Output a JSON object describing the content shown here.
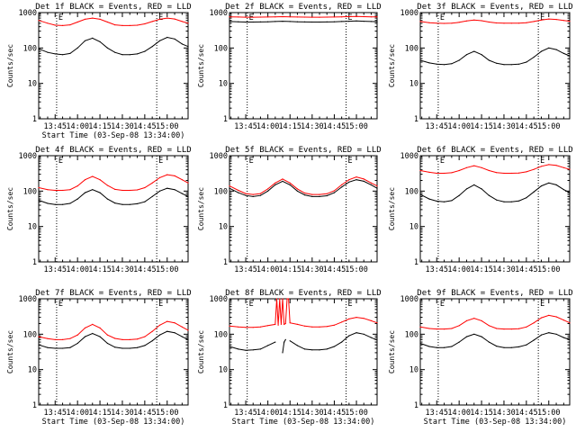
{
  "chart_data": [
    {
      "type": "line",
      "title": "Det 1f BLACK = Events, RED = LLD",
      "xlabel": "Start Time (03-Sep-08 13:34:00)",
      "ylabel": "Counts/sec",
      "yscale": "log",
      "ylim": [
        1,
        1000
      ],
      "xlim": [
        "13:34",
        "15:14"
      ],
      "x_ticks": [
        "13:45",
        "14:00",
        "14:15",
        "14:30",
        "14:45",
        "15:00"
      ],
      "y_ticks": [
        "1",
        "10",
        "100",
        "1000"
      ],
      "markers": [
        "13:46",
        "14:53"
      ],
      "marker_label": "E",
      "x": [
        "13:34",
        "13:40",
        "13:45",
        "13:50",
        "13:55",
        "14:00",
        "14:05",
        "14:10",
        "14:15",
        "14:20",
        "14:25",
        "14:30",
        "14:35",
        "14:40",
        "14:45",
        "14:50",
        "14:55",
        "15:00",
        "15:05",
        "15:10",
        "15:14"
      ],
      "series": [
        {
          "name": "Events",
          "color": "#000000",
          "values": [
            95,
            75,
            68,
            65,
            70,
            100,
            160,
            190,
            150,
            100,
            75,
            65,
            65,
            68,
            80,
            110,
            160,
            200,
            180,
            130,
            110
          ]
        },
        {
          "name": "LLD",
          "color": "#ff0000",
          "values": [
            600,
            500,
            440,
            430,
            450,
            540,
            650,
            700,
            650,
            540,
            450,
            430,
            430,
            440,
            480,
            560,
            650,
            700,
            660,
            560,
            500
          ]
        }
      ]
    },
    {
      "type": "line",
      "title": "Det 2f BLACK = Events, RED = LLD",
      "xlabel": "",
      "ylabel": "Counts/sec",
      "yscale": "log",
      "ylim": [
        1,
        1000
      ],
      "xlim": [
        "13:34",
        "15:14"
      ],
      "x_ticks": [
        "13:45",
        "14:00",
        "14:15",
        "14:30",
        "14:45",
        "15:00"
      ],
      "y_ticks": [
        "1",
        "10",
        "100",
        "1000"
      ],
      "markers": [
        "13:46",
        "14:53"
      ],
      "marker_label": "E",
      "x": [
        "13:34",
        "13:40",
        "13:45",
        "13:50",
        "13:55",
        "14:00",
        "14:05",
        "14:10",
        "14:15",
        "14:20",
        "14:25",
        "14:30",
        "14:35",
        "14:40",
        "14:45",
        "14:50",
        "14:55",
        "15:00",
        "15:05",
        "15:10",
        "15:14"
      ],
      "series": [
        {
          "name": "Events",
          "color": "#000000",
          "values": [
            560,
            550,
            540,
            540,
            545,
            550,
            560,
            570,
            560,
            550,
            545,
            540,
            540,
            545,
            550,
            560,
            570,
            580,
            570,
            560,
            555
          ]
        },
        {
          "name": "LLD",
          "color": "#ff0000",
          "values": [
            760,
            750,
            740,
            740,
            745,
            750,
            760,
            770,
            760,
            750,
            745,
            740,
            740,
            745,
            750,
            760,
            770,
            780,
            770,
            760,
            755
          ]
        }
      ]
    },
    {
      "type": "line",
      "title": "Det 3f BLACK = Events, RED = LLD",
      "xlabel": "",
      "ylabel": "Counts/sec",
      "yscale": "log",
      "ylim": [
        1,
        1000
      ],
      "xlim": [
        "13:34",
        "15:14"
      ],
      "x_ticks": [
        "13:45",
        "14:00",
        "14:15",
        "14:30",
        "14:45",
        "15:00"
      ],
      "y_ticks": [
        "1",
        "10",
        "100",
        "1000"
      ],
      "markers": [
        "13:46",
        "14:53"
      ],
      "marker_label": "E",
      "x": [
        "13:34",
        "13:40",
        "13:45",
        "13:50",
        "13:55",
        "14:00",
        "14:05",
        "14:10",
        "14:15",
        "14:20",
        "14:25",
        "14:30",
        "14:35",
        "14:40",
        "14:45",
        "14:50",
        "14:55",
        "15:00",
        "15:05",
        "15:10",
        "15:14"
      ],
      "series": [
        {
          "name": "Events",
          "color": "#000000",
          "values": [
            45,
            38,
            35,
            34,
            36,
            45,
            65,
            80,
            65,
            45,
            37,
            34,
            34,
            35,
            40,
            55,
            80,
            100,
            90,
            70,
            60
          ]
        },
        {
          "name": "LLD",
          "color": "#ff0000",
          "values": [
            560,
            520,
            500,
            495,
            500,
            530,
            580,
            620,
            590,
            540,
            510,
            500,
            500,
            505,
            520,
            560,
            620,
            660,
            640,
            600,
            570
          ]
        }
      ]
    },
    {
      "type": "line",
      "title": "Det 4f BLACK = Events, RED = LLD",
      "xlabel": "",
      "ylabel": "Counts/sec",
      "yscale": "log",
      "ylim": [
        1,
        1000
      ],
      "xlim": [
        "13:34",
        "15:14"
      ],
      "x_ticks": [
        "13:45",
        "14:00",
        "14:15",
        "14:30",
        "14:45",
        "15:00"
      ],
      "y_ticks": [
        "1",
        "10",
        "100",
        "1000"
      ],
      "markers": [
        "13:46",
        "14:53"
      ],
      "marker_label": "E",
      "x": [
        "13:34",
        "13:40",
        "13:45",
        "13:50",
        "13:55",
        "14:00",
        "14:05",
        "14:10",
        "14:15",
        "14:20",
        "14:25",
        "14:30",
        "14:35",
        "14:40",
        "14:45",
        "14:50",
        "14:55",
        "15:00",
        "15:05",
        "15:10",
        "15:14"
      ],
      "series": [
        {
          "name": "Events",
          "color": "#000000",
          "values": [
            55,
            45,
            42,
            42,
            45,
            60,
            90,
            110,
            90,
            60,
            46,
            42,
            42,
            44,
            50,
            70,
            100,
            120,
            110,
            85,
            70
          ]
        },
        {
          "name": "LLD",
          "color": "#ff0000",
          "values": [
            125,
            110,
            105,
            105,
            110,
            140,
            210,
            260,
            210,
            145,
            112,
            105,
            105,
            108,
            125,
            170,
            240,
            290,
            270,
            210,
            170
          ]
        }
      ]
    },
    {
      "type": "line",
      "title": "Det 5f BLACK = Events, RED = LLD",
      "xlabel": "",
      "ylabel": "Counts/sec",
      "yscale": "log",
      "ylim": [
        1,
        1000
      ],
      "xlim": [
        "13:34",
        "15:14"
      ],
      "x_ticks": [
        "13:45",
        "14:00",
        "14:15",
        "14:30",
        "14:45",
        "15:00"
      ],
      "y_ticks": [
        "1",
        "10",
        "100",
        "1000"
      ],
      "markers": [
        "13:46",
        "14:53"
      ],
      "marker_label": "E",
      "x": [
        "13:34",
        "13:40",
        "13:45",
        "13:50",
        "13:55",
        "14:00",
        "14:05",
        "14:10",
        "14:15",
        "14:20",
        "14:25",
        "14:30",
        "14:35",
        "14:40",
        "14:45",
        "14:50",
        "14:55",
        "15:00",
        "15:05",
        "15:10",
        "15:14"
      ],
      "series": [
        {
          "name": "Events",
          "color": "#000000",
          "values": [
            120,
            90,
            75,
            70,
            75,
            100,
            150,
            190,
            150,
            100,
            78,
            70,
            70,
            74,
            90,
            130,
            180,
            210,
            190,
            150,
            120
          ]
        },
        {
          "name": "LLD",
          "color": "#ff0000",
          "values": [
            140,
            105,
            85,
            80,
            85,
            115,
            170,
            220,
            170,
            115,
            88,
            80,
            80,
            84,
            102,
            150,
            210,
            250,
            220,
            170,
            140
          ]
        }
      ]
    },
    {
      "type": "line",
      "title": "Det 6f BLACK = Events, RED = LLD",
      "xlabel": "",
      "ylabel": "Counts/sec",
      "yscale": "log",
      "ylim": [
        1,
        1000
      ],
      "xlim": [
        "13:34",
        "15:14"
      ],
      "x_ticks": [
        "13:45",
        "14:00",
        "14:15",
        "14:30",
        "14:45",
        "15:00"
      ],
      "y_ticks": [
        "1",
        "10",
        "100",
        "1000"
      ],
      "markers": [
        "13:46",
        "14:53"
      ],
      "marker_label": "E",
      "x": [
        "13:34",
        "13:40",
        "13:45",
        "13:50",
        "13:55",
        "14:00",
        "14:05",
        "14:10",
        "14:15",
        "14:20",
        "14:25",
        "14:30",
        "14:35",
        "14:40",
        "14:45",
        "14:50",
        "14:55",
        "15:00",
        "15:05",
        "15:10",
        "15:14"
      ],
      "series": [
        {
          "name": "Events",
          "color": "#000000",
          "values": [
            80,
            60,
            52,
            50,
            54,
            75,
            115,
            150,
            115,
            75,
            56,
            50,
            50,
            53,
            65,
            95,
            140,
            170,
            150,
            110,
            90
          ]
        },
        {
          "name": "LLD",
          "color": "#ff0000",
          "values": [
            380,
            340,
            320,
            320,
            330,
            380,
            460,
            520,
            460,
            380,
            335,
            320,
            320,
            325,
            350,
            410,
            500,
            560,
            530,
            460,
            410
          ]
        }
      ]
    },
    {
      "type": "line",
      "title": "Det 7f BLACK = Events, RED = LLD",
      "xlabel": "Start Time (03-Sep-08 13:34:00)",
      "ylabel": "Counts/sec",
      "yscale": "log",
      "ylim": [
        1,
        1000
      ],
      "xlim": [
        "13:34",
        "15:14"
      ],
      "x_ticks": [
        "13:45",
        "14:00",
        "14:15",
        "14:30",
        "14:45",
        "15:00"
      ],
      "y_ticks": [
        "1",
        "10",
        "100",
        "1000"
      ],
      "markers": [
        "13:46",
        "14:53"
      ],
      "marker_label": "E",
      "x": [
        "13:34",
        "13:40",
        "13:45",
        "13:50",
        "13:55",
        "14:00",
        "14:05",
        "14:10",
        "14:15",
        "14:20",
        "14:25",
        "14:30",
        "14:35",
        "14:40",
        "14:45",
        "14:50",
        "14:55",
        "15:00",
        "15:05",
        "15:10",
        "15:14"
      ],
      "series": [
        {
          "name": "Events",
          "color": "#000000",
          "values": [
            50,
            42,
            40,
            40,
            42,
            55,
            85,
            105,
            85,
            55,
            43,
            40,
            40,
            42,
            48,
            65,
            95,
            120,
            110,
            85,
            70
          ]
        },
        {
          "name": "LLD",
          "color": "#ff0000",
          "values": [
            85,
            75,
            70,
            70,
            75,
            95,
            150,
            190,
            150,
            95,
            76,
            70,
            70,
            73,
            85,
            120,
            180,
            230,
            210,
            160,
            130
          ]
        }
      ]
    },
    {
      "type": "line",
      "title": "Det 8f BLACK = Events, RED = LLD",
      "xlabel": "Start Time (03-Sep-08 13:34:00)",
      "ylabel": "Counts/sec",
      "yscale": "log",
      "ylim": [
        1,
        1000
      ],
      "xlim": [
        "13:34",
        "15:14"
      ],
      "x_ticks": [
        "13:45",
        "14:00",
        "14:15",
        "14:30",
        "14:45",
        "15:00"
      ],
      "y_ticks": [
        "1",
        "10",
        "100",
        "1000"
      ],
      "markers": [
        "13:46",
        "14:53"
      ],
      "marker_label": "E",
      "x": [
        "13:34",
        "13:40",
        "13:45",
        "13:50",
        "13:55",
        "14:00",
        "14:05",
        "14:06",
        "14:07",
        "14:08",
        "14:09",
        "14:10",
        "14:11",
        "14:12",
        "14:13",
        "14:14",
        "14:15",
        "14:20",
        "14:25",
        "14:30",
        "14:35",
        "14:40",
        "14:45",
        "14:50",
        "14:55",
        "15:00",
        "15:05",
        "15:10",
        "15:14"
      ],
      "series": [
        {
          "name": "Events",
          "color": "#000000",
          "values": [
            45,
            38,
            35,
            36,
            38,
            48,
            60,
            null,
            null,
            null,
            null,
            30,
            60,
            70,
            null,
            null,
            65,
            48,
            38,
            36,
            36,
            38,
            45,
            60,
            90,
            110,
            100,
            80,
            68
          ]
        },
        {
          "name": "LLD",
          "color": "#ff0000",
          "values": [
            170,
            160,
            155,
            155,
            160,
            175,
            190,
            1000,
            180,
            1000,
            190,
            1000,
            190,
            200,
            1000,
            1000,
            210,
            190,
            170,
            160,
            160,
            165,
            180,
            220,
            270,
            300,
            280,
            240,
            210
          ]
        }
      ]
    },
    {
      "type": "line",
      "title": "Det 9f BLACK = Events, RED = LLD",
      "xlabel": "Start Time (03-Sep-08 13:34:00)",
      "ylabel": "Counts/sec",
      "yscale": "log",
      "ylim": [
        1,
        1000
      ],
      "xlim": [
        "13:34",
        "15:14"
      ],
      "x_ticks": [
        "13:45",
        "14:00",
        "14:15",
        "14:30",
        "14:45",
        "15:00"
      ],
      "y_ticks": [
        "1",
        "10",
        "100",
        "1000"
      ],
      "markers": [
        "13:46",
        "14:53"
      ],
      "marker_label": "E",
      "x": [
        "13:34",
        "13:40",
        "13:45",
        "13:50",
        "13:55",
        "14:00",
        "14:05",
        "14:10",
        "14:15",
        "14:20",
        "14:25",
        "14:30",
        "14:35",
        "14:40",
        "14:45",
        "14:50",
        "14:55",
        "15:00",
        "15:05",
        "15:10",
        "15:14"
      ],
      "series": [
        {
          "name": "Events",
          "color": "#000000",
          "values": [
            55,
            45,
            42,
            42,
            45,
            60,
            85,
            100,
            85,
            60,
            46,
            42,
            42,
            44,
            50,
            68,
            95,
            110,
            100,
            80,
            70
          ]
        },
        {
          "name": "LLD",
          "color": "#ff0000",
          "values": [
            160,
            145,
            140,
            140,
            145,
            175,
            240,
            280,
            240,
            175,
            145,
            140,
            140,
            143,
            160,
            210,
            290,
            340,
            310,
            250,
            210
          ]
        }
      ]
    }
  ]
}
